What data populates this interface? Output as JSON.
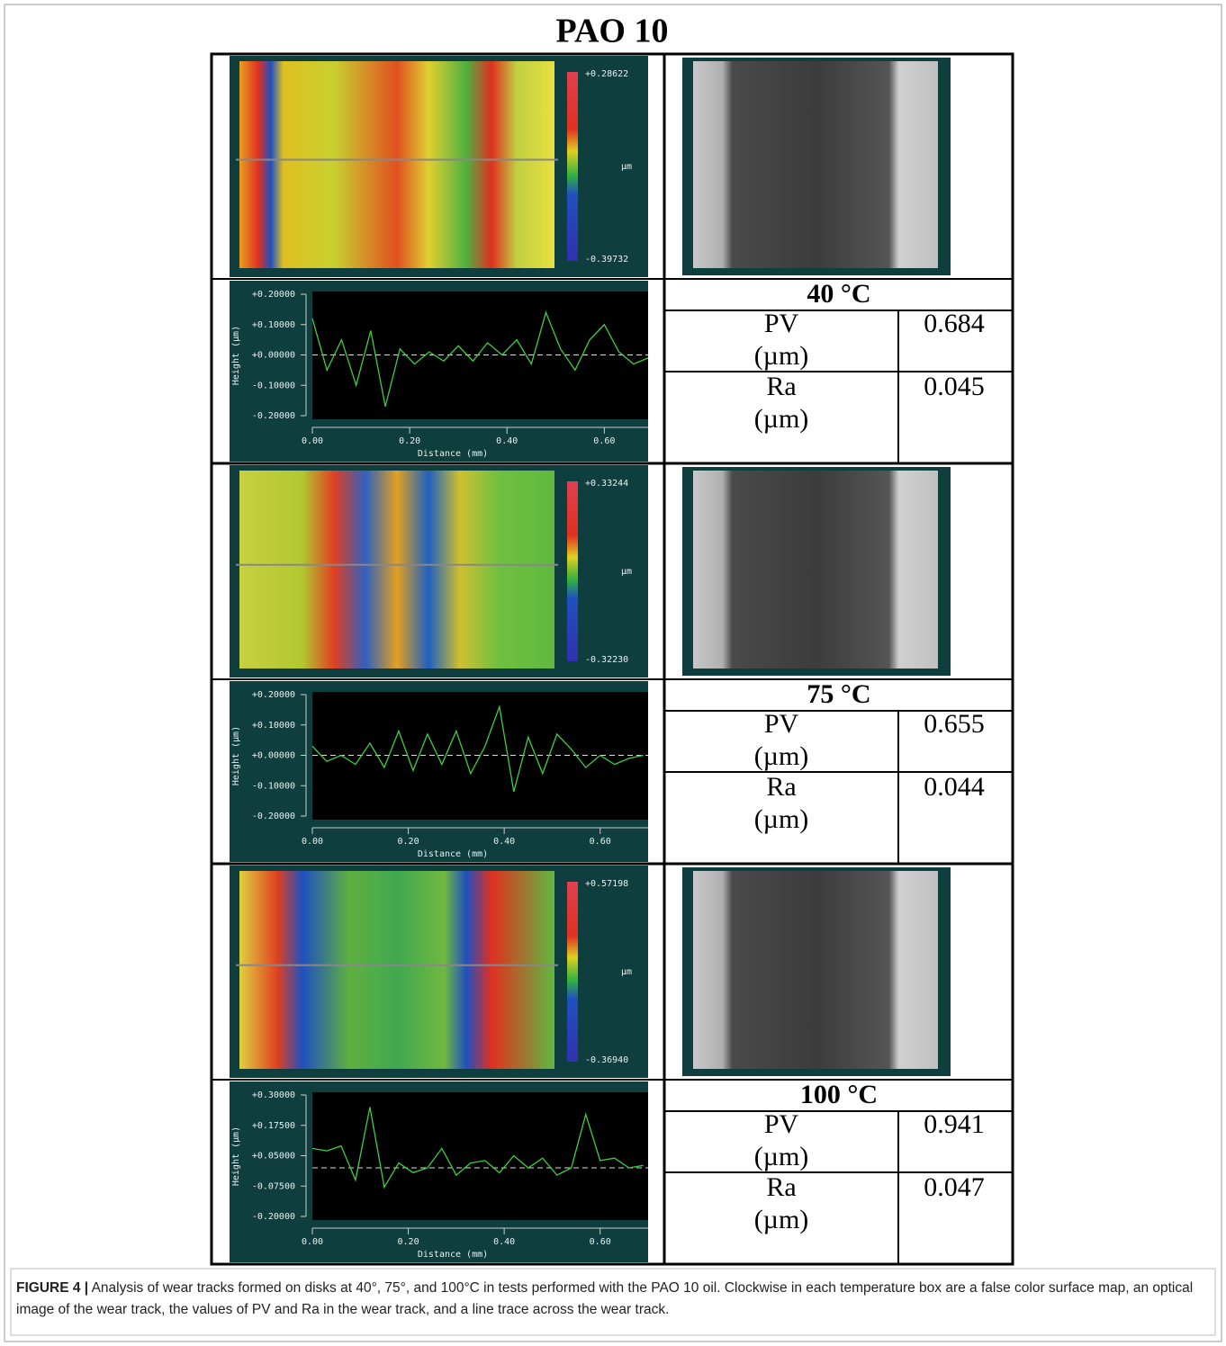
{
  "title": "PAO 10",
  "panels": [
    {
      "map": {
        "max_label": "+0.28622",
        "min_label": "-0.39732",
        "unit": "µm"
      },
      "profile": {
        "ylabel": "Height (µm)",
        "xlabel": "Distance (mm)",
        "xlim": [
          0,
          0.69
        ],
        "ylim": [
          -0.2,
          0.2
        ],
        "xticks": [
          {
            "value": 0,
            "label": "0.00"
          },
          {
            "value": 0.2,
            "label": "0.20"
          },
          {
            "value": 0.4,
            "label": "0.40"
          },
          {
            "value": 0.6,
            "label": "0.60"
          }
        ],
        "yticks": [
          {
            "value": 0.2,
            "label": "+0.20000"
          },
          {
            "value": 0.1,
            "label": "+0.10000"
          },
          {
            "value": 0,
            "label": "+0.00000"
          },
          {
            "value": -0.1,
            "label": "-0.10000"
          },
          {
            "value": -0.2,
            "label": "-0.20000"
          }
        ],
        "x": [
          0,
          0.03,
          0.06,
          0.09,
          0.12,
          0.15,
          0.18,
          0.21,
          0.24,
          0.27,
          0.3,
          0.33,
          0.36,
          0.39,
          0.42,
          0.45,
          0.48,
          0.51,
          0.54,
          0.57,
          0.6,
          0.63,
          0.66,
          0.69
        ],
        "values": [
          0.12,
          -0.05,
          0.05,
          -0.1,
          0.08,
          -0.17,
          0.02,
          -0.03,
          0.01,
          -0.02,
          0.03,
          -0.02,
          0.04,
          0.0,
          0.05,
          -0.03,
          0.14,
          0.02,
          -0.05,
          0.05,
          0.1,
          0.01,
          -0.03,
          -0.01
        ]
      },
      "table": {
        "temp": "40 °C",
        "rows": [
          [
            "PV",
            "(µm)",
            0.684
          ],
          [
            "Ra",
            "(µm)",
            0.045
          ]
        ]
      }
    },
    {
      "map": {
        "max_label": "+0.33244",
        "min_label": "-0.32230",
        "unit": "µm"
      },
      "profile": {
        "ylabel": "Height (µm)",
        "xlabel": "Distance (mm)",
        "xlim": [
          0,
          0.7
        ],
        "ylim": [
          -0.2,
          0.2
        ],
        "xticks": [
          {
            "value": 0,
            "label": "0.00"
          },
          {
            "value": 0.2,
            "label": "0.20"
          },
          {
            "value": 0.4,
            "label": "0.40"
          },
          {
            "value": 0.6,
            "label": "0.60"
          }
        ],
        "yticks": [
          {
            "value": 0.2,
            "label": "+0.20000"
          },
          {
            "value": 0.1,
            "label": "+0.10000"
          },
          {
            "value": 0,
            "label": "+0.00000"
          },
          {
            "value": -0.1,
            "label": "-0.10000"
          },
          {
            "value": -0.2,
            "label": "-0.20000"
          }
        ],
        "x": [
          0,
          0.03,
          0.06,
          0.09,
          0.12,
          0.15,
          0.18,
          0.21,
          0.24,
          0.27,
          0.3,
          0.33,
          0.36,
          0.39,
          0.42,
          0.45,
          0.48,
          0.51,
          0.54,
          0.57,
          0.6,
          0.63,
          0.66,
          0.69
        ],
        "values": [
          0.03,
          -0.02,
          0.0,
          -0.03,
          0.04,
          -0.04,
          0.08,
          -0.05,
          0.07,
          -0.03,
          0.08,
          -0.06,
          0.03,
          0.16,
          -0.12,
          0.06,
          -0.06,
          0.07,
          0.02,
          -0.04,
          0.0,
          -0.03,
          -0.01,
          0.0
        ]
      },
      "table": {
        "temp": "75 °C",
        "rows": [
          [
            "PV",
            "(µm)",
            0.655
          ],
          [
            "Ra",
            "(µm)",
            0.044
          ]
        ]
      }
    },
    {
      "map": {
        "max_label": "+0.57198",
        "min_label": "-0.36940",
        "unit": "µm"
      },
      "profile": {
        "ylabel": "Height (µm)",
        "xlabel": "Distance (mm)",
        "xlim": [
          0,
          0.7
        ],
        "ylim": [
          -0.2,
          0.3
        ],
        "xticks": [
          {
            "value": 0,
            "label": "0.00"
          },
          {
            "value": 0.2,
            "label": "0.20"
          },
          {
            "value": 0.4,
            "label": "0.40"
          },
          {
            "value": 0.6,
            "label": "0.60"
          }
        ],
        "yticks": [
          {
            "value": 0.3,
            "label": "+0.30000"
          },
          {
            "value": 0.175,
            "label": "+0.17500"
          },
          {
            "value": 0.05,
            "label": "+0.05000"
          },
          {
            "value": -0.075,
            "label": "-0.07500"
          },
          {
            "value": -0.2,
            "label": "-0.20000"
          }
        ],
        "x": [
          0,
          0.03,
          0.06,
          0.09,
          0.12,
          0.15,
          0.18,
          0.21,
          0.24,
          0.27,
          0.3,
          0.33,
          0.36,
          0.39,
          0.42,
          0.45,
          0.48,
          0.51,
          0.54,
          0.57,
          0.6,
          0.63,
          0.66,
          0.69
        ],
        "values": [
          0.08,
          0.07,
          0.09,
          -0.05,
          0.25,
          -0.08,
          0.02,
          -0.02,
          0.0,
          0.08,
          -0.03,
          0.02,
          0.03,
          -0.02,
          0.05,
          0.0,
          0.04,
          -0.03,
          0.0,
          0.22,
          0.03,
          0.04,
          0.0,
          0.01
        ]
      },
      "table": {
        "temp": "100 °C",
        "rows": [
          [
            "PV",
            "(µm)",
            0.941
          ],
          [
            "Ra",
            "(µm)",
            0.047
          ]
        ]
      }
    }
  ],
  "caption": {
    "label": "FIGURE 4 |",
    "text": "Analysis of wear tracks formed on disks at 40°, 75°, and 100°C in tests performed with the PAO 10 oil. Clockwise in each temperature box are a false color surface map, an optical image of the wear track, the values of PV and Ra in the wear track, and a line trace across the wear track."
  }
}
